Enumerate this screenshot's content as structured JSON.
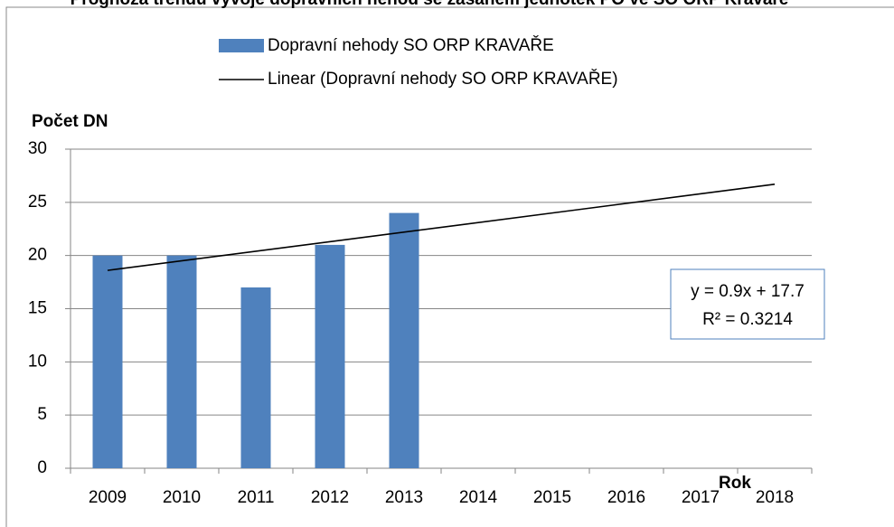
{
  "chart_data": {
    "type": "bar",
    "title": "Prognóza trendu vývoje dopravních nehod se zásahem jednotek PO ve SO ORP Kravaře",
    "y_label": "Počet DN",
    "x_label": "Rok",
    "categories": [
      "2009",
      "2010",
      "2011",
      "2012",
      "2013",
      "2014",
      "2015",
      "2016",
      "2017",
      "2018"
    ],
    "series": [
      {
        "name": "Dopravní nehody SO ORP KRAVAŘE",
        "color": "#4f81bd",
        "values": [
          20,
          20,
          17,
          21,
          24,
          null,
          null,
          null,
          null,
          null
        ]
      }
    ],
    "trendline": {
      "name": "Linear (Dopravní nehody SO ORP KRAVAŘE)",
      "color": "#000000",
      "slope": 0.9,
      "intercept": 17.7,
      "equation": "y = 0.9x + 17.7",
      "r2": "R² = 0.3214"
    },
    "ylim": [
      0,
      30
    ],
    "yticks": [
      0,
      5,
      10,
      15,
      20,
      25,
      30
    ],
    "grid": true
  }
}
